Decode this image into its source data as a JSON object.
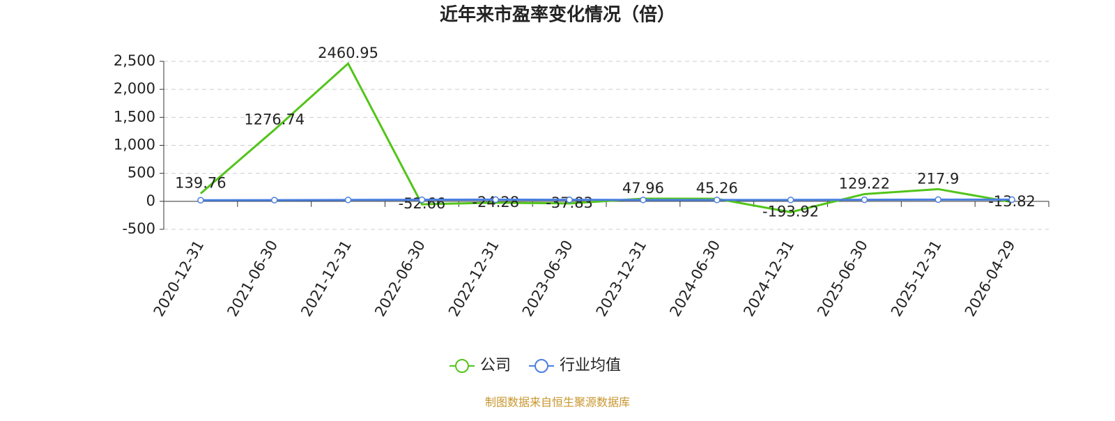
{
  "chart_data": {
    "type": "line",
    "title": "近年来市盈率变化情况（倍）",
    "categories": [
      "2020-12-31",
      "2021-06-30",
      "2021-12-31",
      "2022-06-30",
      "2022-12-31",
      "2023-06-30",
      "2023-12-31",
      "2024-06-30",
      "2024-12-31",
      "2025-06-30",
      "2025-12-31",
      "2026-04-29"
    ],
    "series": [
      {
        "name": "公司",
        "color": "#52c41a",
        "markers": false,
        "show_labels": true,
        "values": [
          139.76,
          1276.74,
          2460.95,
          -52.66,
          -24.28,
          -37.83,
          47.96,
          45.26,
          -193.92,
          129.22,
          217.9,
          -13.82
        ]
      },
      {
        "name": "行业均值",
        "color": "#4a7fe0",
        "markers": true,
        "show_labels": false,
        "values": [
          20,
          22,
          25,
          28,
          30,
          28,
          25,
          25,
          25,
          28,
          30,
          30
        ]
      }
    ],
    "ylim": [
      -500,
      2500
    ],
    "yticks": [
      {
        "value": -500,
        "label": "-500"
      },
      0,
      500,
      {
        "value": 1000,
        "label": "1,000"
      },
      {
        "value": 1500,
        "label": "1,500"
      },
      {
        "value": 2000,
        "label": "2,000"
      },
      {
        "value": 2500,
        "label": "2,500"
      }
    ],
    "grid": true,
    "legend": "bottom",
    "source": "制图数据来自恒生聚源数据库"
  }
}
